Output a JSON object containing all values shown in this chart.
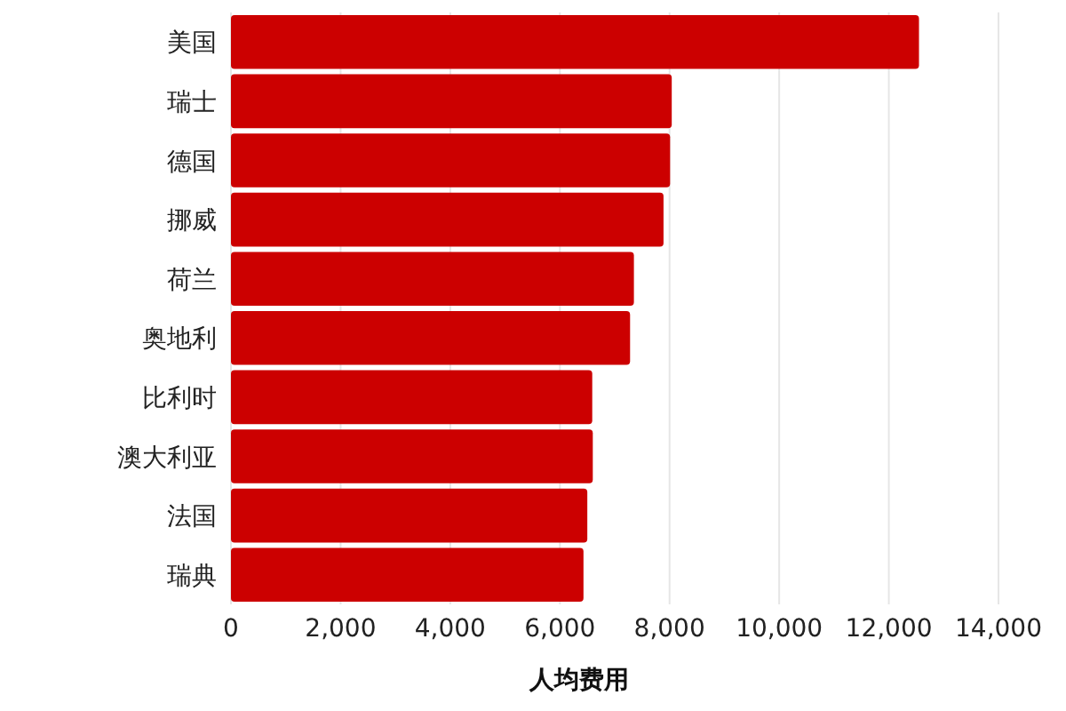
{
  "chart_data": {
    "type": "bar",
    "orientation": "horizontal",
    "xlabel": "人均费用",
    "categories": [
      "美国",
      "瑞士",
      "德国",
      "挪威",
      "荷兰",
      "奥地利",
      "比利时",
      "澳大利亚",
      "法国",
      "瑞典"
    ],
    "values": [
      12550,
      8040,
      8010,
      7890,
      7350,
      7280,
      6590,
      6600,
      6500,
      6430
    ],
    "color": "#cc0000",
    "xlim": [
      0,
      14000
    ],
    "xticks": [
      0,
      {
        "value": 2000,
        "label": "2,000"
      },
      {
        "value": 4000,
        "label": "4,000"
      },
      {
        "value": 6000,
        "label": "6,000"
      },
      {
        "value": 8000,
        "label": "8,000"
      },
      {
        "value": 10000,
        "label": "10,000"
      },
      {
        "value": 12000,
        "label": "12,000"
      },
      {
        "value": 14000,
        "label": "14,000"
      }
    ],
    "grid": "x"
  }
}
